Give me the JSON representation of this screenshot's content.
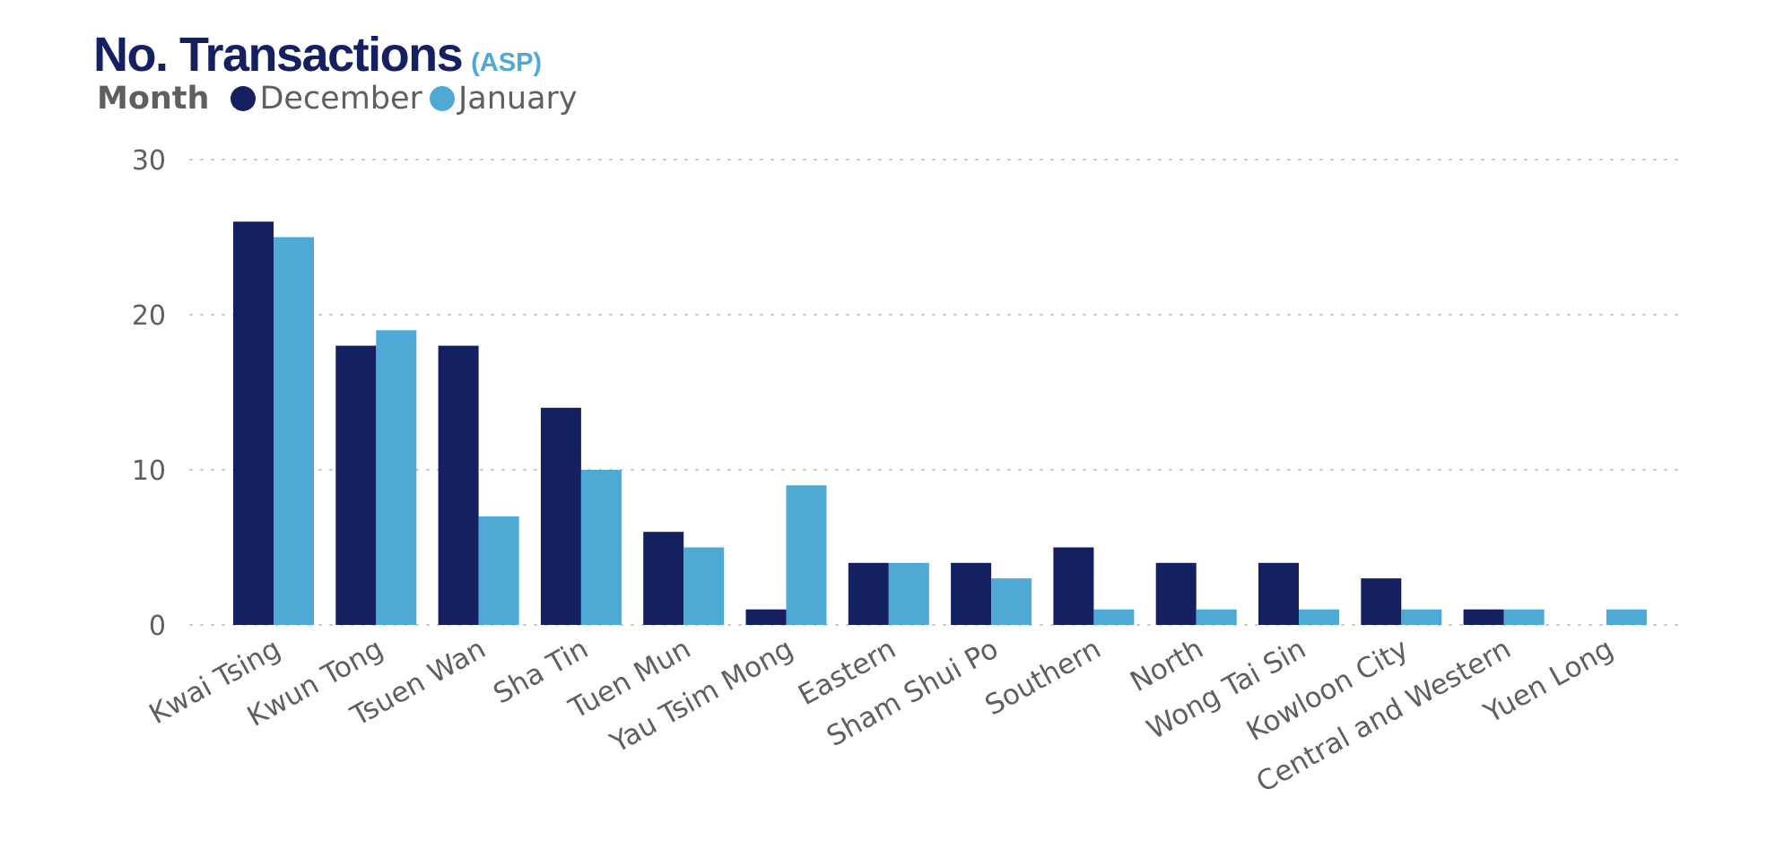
{
  "header": {
    "title": "No. Transactions",
    "subtitle": "(ASP)"
  },
  "legend": {
    "title": "Month",
    "items": [
      {
        "label": "December",
        "color": "#14205f"
      },
      {
        "label": "January",
        "color": "#4ea9d5"
      }
    ]
  },
  "chart_data": {
    "type": "bar",
    "title": "No. Transactions",
    "subtitle": "(ASP)",
    "categories": [
      "Kwai Tsing",
      "Kwun Tong",
      "Tsuen Wan",
      "Sha Tin",
      "Tuen Mun",
      "Yau Tsim Mong",
      "Eastern",
      "Sham Shui Po",
      "Southern",
      "North",
      "Wong Tai Sin",
      "Kowloon City",
      "Central and Western",
      "Yuen Long"
    ],
    "series": [
      {
        "name": "December",
        "color": "#14205f",
        "values": [
          26,
          18,
          18,
          14,
          6,
          1,
          4,
          4,
          5,
          4,
          4,
          3,
          1,
          null
        ]
      },
      {
        "name": "January",
        "color": "#4ea9d5",
        "values": [
          25,
          19,
          7,
          10,
          5,
          9,
          4,
          3,
          1,
          1,
          1,
          1,
          1,
          1
        ]
      }
    ],
    "yticks": [
      0,
      10,
      20,
      30
    ],
    "ylim": [
      0,
      30
    ],
    "grid": true,
    "legend_position": "top-left",
    "xlabel": "",
    "ylabel": ""
  }
}
